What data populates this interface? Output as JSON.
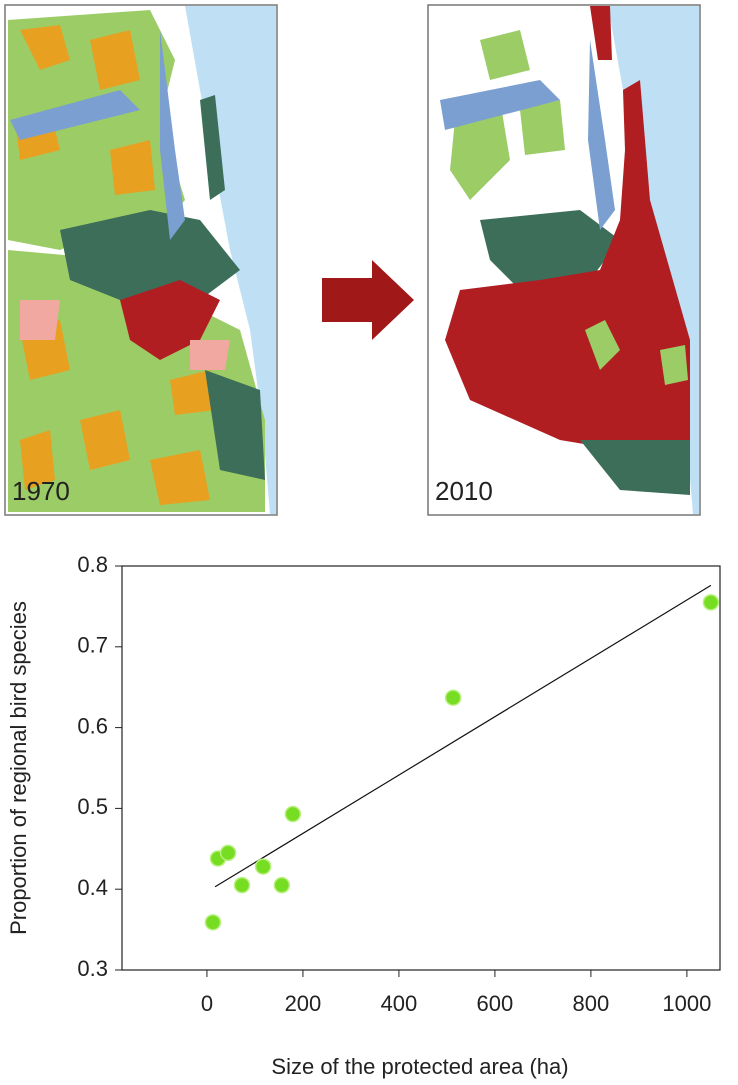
{
  "maps": [
    {
      "label": "1970"
    },
    {
      "label": "2010"
    }
  ],
  "chart_data": {
    "type": "scatter",
    "x_label": "Size of the protected area (ha)",
    "y_label": "Proportion of regional bird species",
    "x": [
      12.5,
      23,
      44,
      73,
      117,
      156,
      179,
      513,
      1050
    ],
    "values": [
      0.359,
      0.438,
      0.445,
      0.405,
      0.428,
      0.405,
      0.493,
      0.637,
      0.755
    ],
    "color": "#77dd22",
    "trend": {
      "x": [
        17,
        1050
      ],
      "y": [
        0.403,
        0.776
      ]
    },
    "xlim": [
      -177,
      1069
    ],
    "ylim": [
      0.3,
      0.8
    ],
    "xticks": [
      0,
      200,
      400,
      600,
      800,
      1000
    ],
    "yticks": [
      0.3,
      0.4,
      0.5,
      0.6,
      0.7,
      0.8
    ]
  }
}
